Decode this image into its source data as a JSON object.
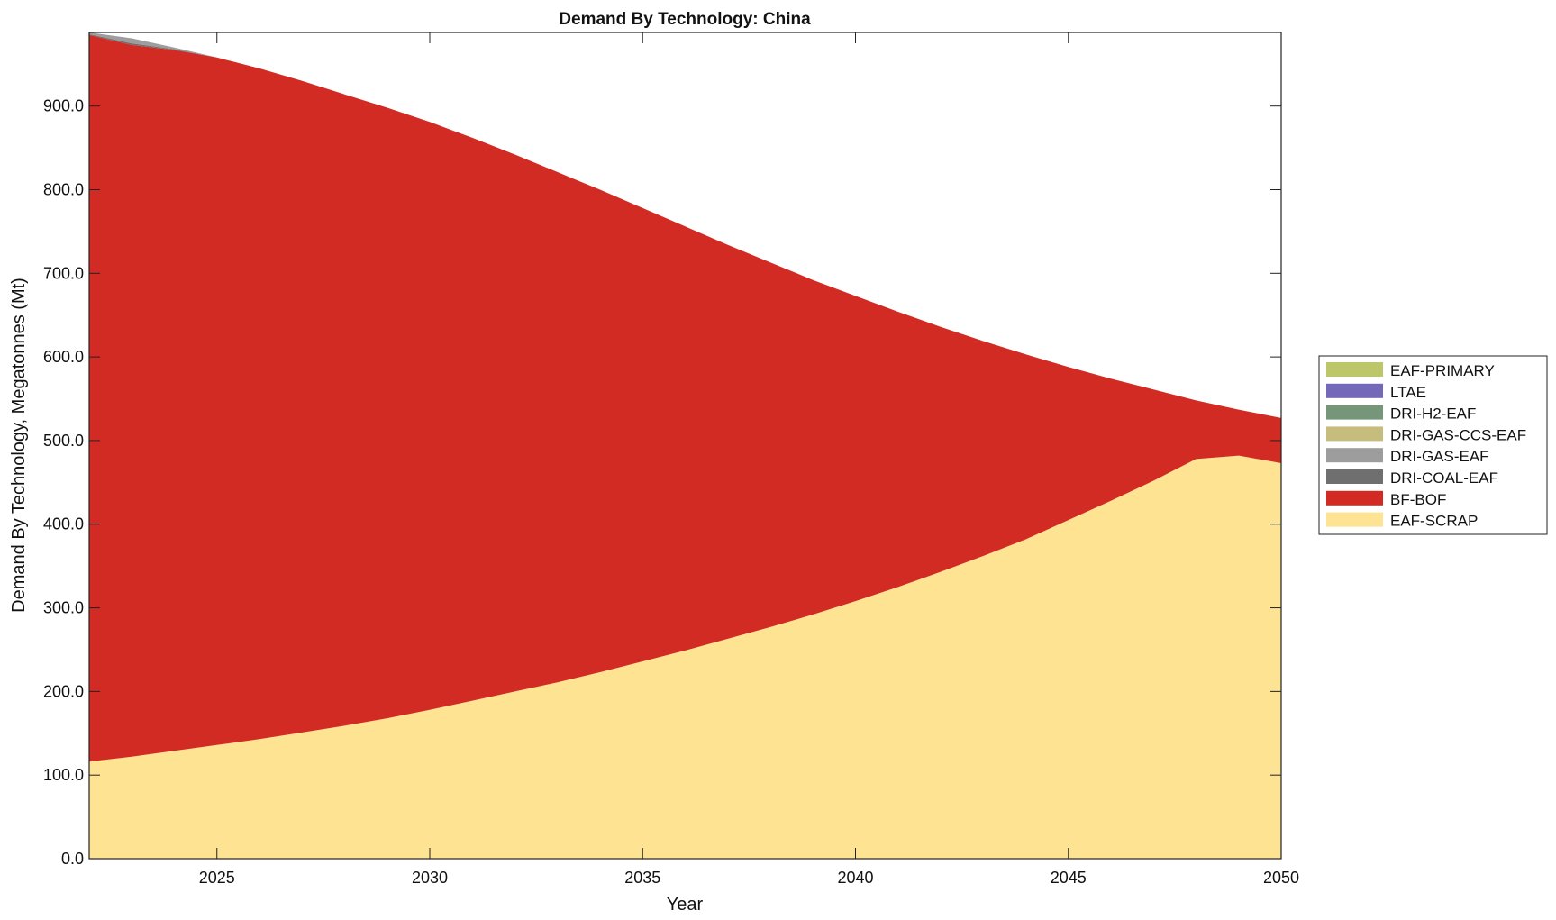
{
  "chart_data": {
    "type": "area",
    "stacked": true,
    "title": "Demand By Technology: China",
    "xlabel": "Year",
    "ylabel": "Demand By Technology, Megatonnes (Mt)",
    "xlim": [
      2022,
      2050
    ],
    "ylim": [
      0,
      988
    ],
    "xticks": [
      2025,
      2030,
      2035,
      2040,
      2045,
      2050
    ],
    "yticks": [
      0,
      100,
      200,
      300,
      400,
      500,
      600,
      700,
      800,
      900
    ],
    "ytick_labels": [
      "0.0",
      "100.0",
      "200.0",
      "300.0",
      "400.0",
      "500.0",
      "600.0",
      "700.0",
      "800.0",
      "900.0"
    ],
    "xtick_labels": [
      "2025",
      "2030",
      "2035",
      "2040",
      "2045",
      "2050"
    ],
    "grid": false,
    "legend_position": "right",
    "x": [
      2022,
      2023,
      2024,
      2025,
      2026,
      2027,
      2028,
      2029,
      2030,
      2031,
      2032,
      2033,
      2034,
      2035,
      2036,
      2037,
      2038,
      2039,
      2040,
      2041,
      2042,
      2043,
      2044,
      2045,
      2046,
      2047,
      2048,
      2049,
      2050
    ],
    "series": [
      {
        "name": "EAF-SCRAP",
        "color": "#fee392",
        "values": [
          116,
          122,
          129,
          136,
          143,
          151,
          159,
          168,
          178,
          189,
          200,
          211,
          223,
          236,
          249,
          263,
          277,
          292,
          308,
          325,
          343,
          362,
          382,
          405,
          428,
          452,
          478,
          482,
          473
        ]
      },
      {
        "name": "BF-BOF",
        "color": "#d22b24",
        "values": [
          869,
          851,
          838,
          822,
          802,
          779,
          755,
          730,
          703,
          673,
          642,
          610,
          577,
          542,
          507,
          471,
          436,
          400,
          365,
          329,
          293,
          257,
          221,
          183,
          146,
          109,
          70,
          55,
          54
        ]
      },
      {
        "name": "DRI-COAL-EAF",
        "color": "#6f6f6f",
        "values": [
          1,
          2,
          1,
          0,
          0,
          0,
          0,
          0,
          0,
          0,
          0,
          0,
          0,
          0,
          0,
          0,
          0,
          0,
          0,
          0,
          0,
          0,
          0,
          0,
          0,
          0,
          0,
          0,
          0
        ]
      },
      {
        "name": "DRI-GAS-EAF",
        "color": "#9d9d9d",
        "values": [
          2,
          6,
          2,
          0,
          0,
          0,
          0,
          0,
          0,
          0,
          0,
          0,
          0,
          0,
          0,
          0,
          0,
          0,
          0,
          0,
          0,
          0,
          0,
          0,
          0,
          0,
          0,
          0,
          0
        ]
      },
      {
        "name": "DRI-GAS-CCS-EAF",
        "color": "#c6bd7c",
        "values": [
          0,
          0,
          0,
          0,
          0,
          0,
          0,
          0,
          0,
          0,
          0,
          0,
          0,
          0,
          0,
          0,
          0,
          0,
          0,
          0,
          0,
          0,
          0,
          0,
          0,
          0,
          0,
          0,
          0
        ]
      },
      {
        "name": "DRI-H2-EAF",
        "color": "#76967a",
        "values": [
          0,
          0,
          0,
          0,
          0,
          0,
          0,
          0,
          0,
          0,
          0,
          0,
          0,
          0,
          0,
          0,
          0,
          0,
          0,
          0,
          0,
          0,
          0,
          0,
          0,
          0,
          0,
          0,
          0
        ]
      },
      {
        "name": "LTAE",
        "color": "#7468b8",
        "values": [
          0,
          0,
          0,
          0,
          0,
          0,
          0,
          0,
          0,
          0,
          0,
          0,
          0,
          0,
          0,
          0,
          0,
          0,
          0,
          0,
          0,
          0,
          0,
          0,
          0,
          0,
          0,
          0,
          0
        ]
      },
      {
        "name": "EAF-PRIMARY",
        "color": "#bec66a",
        "values": [
          0,
          0,
          0,
          0,
          0,
          0,
          0,
          0,
          0,
          0,
          0,
          0,
          0,
          0,
          0,
          0,
          0,
          0,
          0,
          0,
          0,
          0,
          0,
          0,
          0,
          0,
          0,
          0,
          0
        ]
      }
    ]
  }
}
